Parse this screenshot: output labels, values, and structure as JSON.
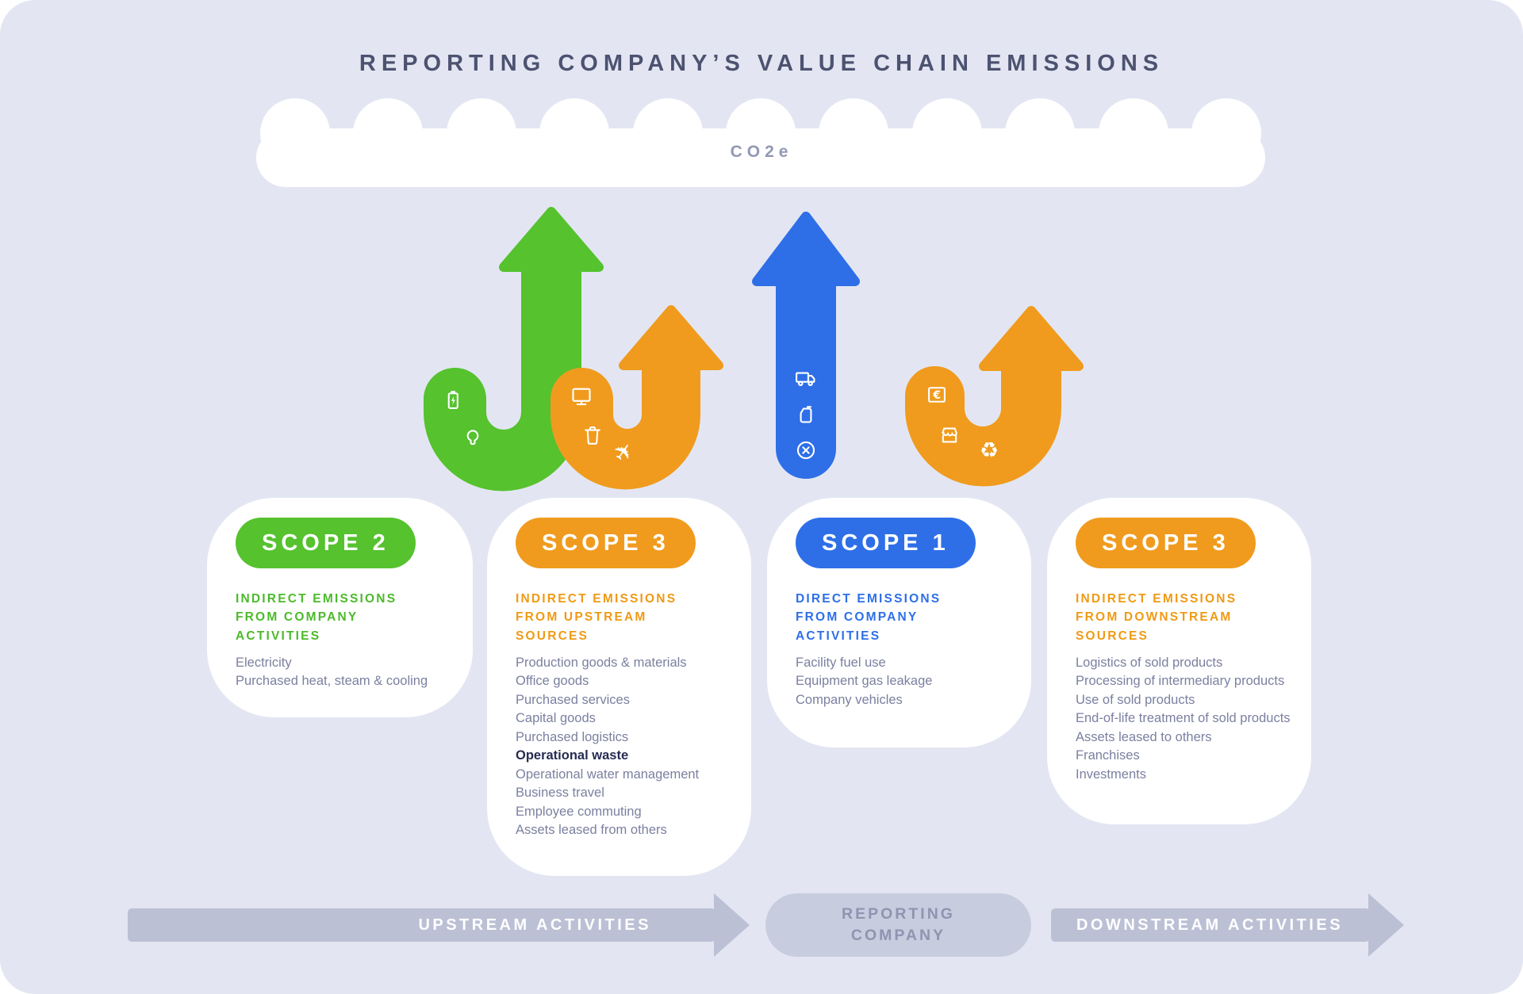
{
  "title": "REPORTING COMPANY’S VALUE CHAIN EMISSIONS",
  "cloud": {
    "label": "CO2e"
  },
  "arrows": [
    {
      "scope": "SCOPE 2",
      "direction": "upstream",
      "color": "#55C22E",
      "icons": [
        "battery-charging-icon",
        "lightbulb-icon"
      ]
    },
    {
      "scope": "SCOPE 3",
      "direction": "upstream",
      "color": "#F09B1E",
      "icons": [
        "monitor-icon",
        "trash-icon",
        "airplane-icon"
      ]
    },
    {
      "scope": "SCOPE 1",
      "direction": "company",
      "color": "#2E6FE8",
      "icons": [
        "truck-icon",
        "fuel-can-icon",
        "x-circle-icon"
      ]
    },
    {
      "scope": "SCOPE 3",
      "direction": "downstream",
      "color": "#F09B1E",
      "icons": [
        "euro-sign-icon",
        "storefront-icon",
        "recycle-icon"
      ]
    }
  ],
  "cards": [
    {
      "badge": "SCOPE 2",
      "theme": "green",
      "heading_lines": [
        "INDIRECT EMISSIONS",
        "FROM COMPANY",
        "ACTIVITIES"
      ],
      "items": [
        "Electricity",
        "Purchased heat, steam & cooling"
      ]
    },
    {
      "badge": "SCOPE 3",
      "theme": "orange",
      "heading_lines": [
        "INDIRECT EMISSIONS",
        "FROM UPSTREAM",
        "SOURCES"
      ],
      "items": [
        "Production goods & materials",
        "Office goods",
        "Purchased services",
        "Capital goods",
        "Purchased logistics",
        "Operational waste",
        "Operational water management",
        "Business travel",
        "Employee commuting",
        "Assets leased from others"
      ],
      "emphasis_item": "Operational waste"
    },
    {
      "badge": "SCOPE 1",
      "theme": "blue",
      "heading_lines": [
        "DIRECT EMISSIONS",
        "FROM COMPANY",
        "ACTIVITIES"
      ],
      "items": [
        "Facility fuel use",
        "Equipment gas leakage",
        "Company vehicles"
      ]
    },
    {
      "badge": "SCOPE 3",
      "theme": "orange",
      "heading_lines": [
        "INDIRECT EMISSIONS",
        "FROM DOWNSTREAM",
        "SOURCES"
      ],
      "items": [
        "Logistics of sold products",
        "Processing of intermediary products",
        "Use of sold products",
        "End-of-life treatment of sold products",
        "Assets leased to others",
        "Franchises",
        "Investments"
      ]
    }
  ],
  "footer": {
    "upstream_label": "UPSTREAM ACTIVITIES",
    "company_lines": [
      "REPORTING",
      "COMPANY"
    ],
    "downstream_label": "DOWNSTREAM ACTIVITIES"
  },
  "colors": {
    "background": "#E3E6F2",
    "card": "#FFFFFF",
    "green": "#55C22E",
    "orange": "#F09B1E",
    "blue": "#2E6FE8",
    "title": "#4C5270",
    "cloud_label": "#9298B4",
    "body_text": "#7B80A0",
    "emphasis_text": "#272C52",
    "footer_arrow": "#BCC0D5",
    "footer_pill": "#C8CCDF",
    "footer_pill_text": "#8F94B0"
  }
}
